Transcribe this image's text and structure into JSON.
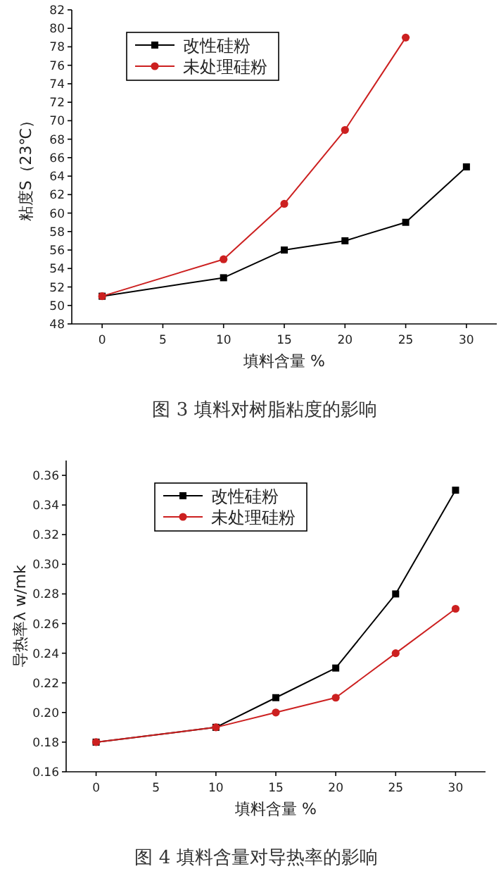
{
  "chart_data": [
    {
      "type": "line",
      "title": "图 3 填料对树脂粘度的影响",
      "xlabel": "填料含量 %",
      "ylabel": "粘度S（23℃）",
      "x": [
        0,
        10,
        15,
        20,
        25,
        30
      ],
      "xlim": [
        -2.5,
        32.5
      ],
      "xticks": [
        0,
        5,
        10,
        15,
        20,
        25,
        30
      ],
      "ylim": [
        48,
        82
      ],
      "yticks": [
        48,
        50,
        52,
        54,
        56,
        58,
        60,
        62,
        64,
        66,
        68,
        70,
        72,
        74,
        76,
        78,
        80,
        82
      ],
      "legend": "top left",
      "grid": false,
      "series": [
        {
          "name": "改性硅粉",
          "color": "#000000",
          "marker": "square",
          "values": [
            51,
            53,
            56,
            57,
            59,
            65
          ]
        },
        {
          "name": "未处理硅粉",
          "color": "#cc2020",
          "marker": "circle",
          "values": [
            51,
            55,
            61,
            69,
            79,
            null
          ]
        }
      ]
    },
    {
      "type": "line",
      "title": "图 4 填料含量对导热率的影响",
      "xlabel": "填料含量 %",
      "ylabel": "导热率λ w/mk",
      "x": [
        0,
        10,
        15,
        20,
        25,
        30
      ],
      "xlim": [
        -2.5,
        32.5
      ],
      "xticks": [
        0,
        5,
        10,
        15,
        20,
        25,
        30
      ],
      "ylim": [
        0.16,
        0.37
      ],
      "yticks": [
        0.16,
        0.18,
        {
          "value": 0.2,
          "label": "0.20"
        },
        0.22,
        0.24,
        0.26,
        0.28,
        {
          "value": 0.3,
          "label": "0.30"
        },
        0.32,
        0.34,
        0.36
      ],
      "legend": "top",
      "grid": false,
      "series": [
        {
          "name": "改性硅粉",
          "color": "#000000",
          "marker": "square",
          "values": [
            0.18,
            0.19,
            0.21,
            0.23,
            0.28,
            0.35
          ]
        },
        {
          "name": "未处理硅粉",
          "color": "#cc2020",
          "marker": "circle",
          "values": [
            0.18,
            0.19,
            0.2,
            0.21,
            0.24,
            0.27
          ]
        }
      ]
    }
  ]
}
